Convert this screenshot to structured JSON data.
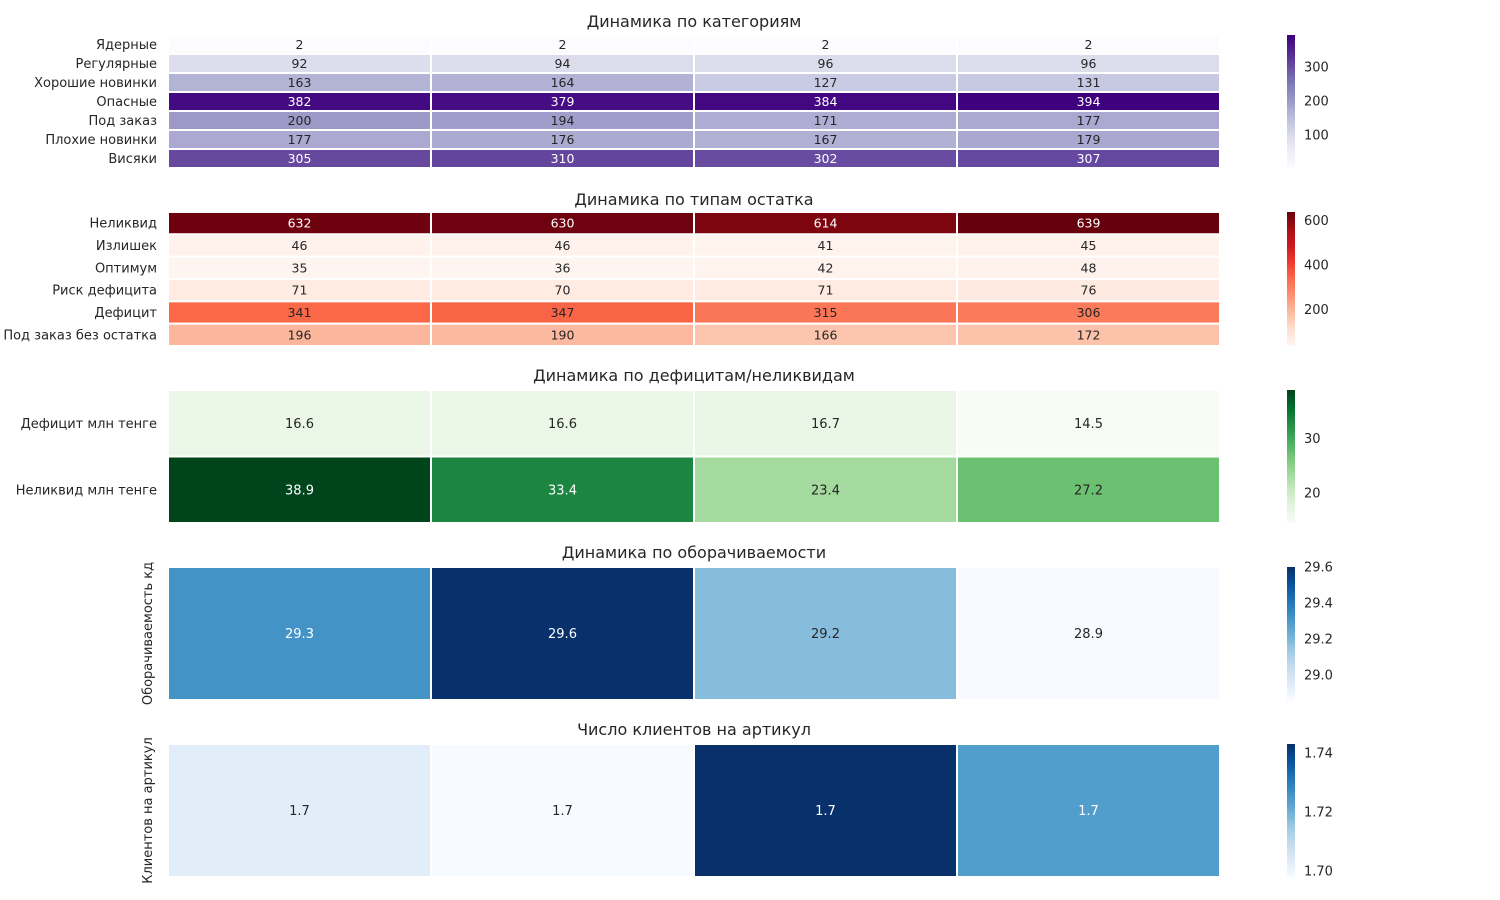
{
  "chart_data": [
    {
      "type": "heatmap",
      "title": "Динамика по категориям",
      "ylabel": "",
      "cmap": "Purples",
      "rows": [
        "Ядерные",
        "Регулярные",
        "Хорошие новинки",
        "Опасные",
        "Под заказ",
        "Плохие новинки",
        "Висяки"
      ],
      "cells": [
        [
          "2",
          "2",
          "2",
          "2"
        ],
        [
          "92",
          "94",
          "96",
          "96"
        ],
        [
          "163",
          "164",
          "127",
          "131"
        ],
        [
          "382",
          "379",
          "384",
          "394"
        ],
        [
          "200",
          "194",
          "171",
          "177"
        ],
        [
          "177",
          "176",
          "167",
          "179"
        ],
        [
          "305",
          "310",
          "302",
          "307"
        ]
      ],
      "vmin": 2,
      "vmax": 394,
      "colorbar_ticks": [
        "100",
        "200",
        "300"
      ],
      "colorbar_tick_values": [
        100,
        200,
        300
      ]
    },
    {
      "type": "heatmap",
      "title": "Динамика по типам остатка",
      "ylabel": "",
      "cmap": "Reds",
      "rows": [
        "Неликвид",
        "Излишек",
        "Оптимум",
        "Риск дефицита",
        "Дефицит",
        "Под заказ без остатка"
      ],
      "cells": [
        [
          "632",
          "630",
          "614",
          "639"
        ],
        [
          "46",
          "46",
          "41",
          "45"
        ],
        [
          "35",
          "36",
          "42",
          "48"
        ],
        [
          "71",
          "70",
          "71",
          "76"
        ],
        [
          "341",
          "347",
          "315",
          "306"
        ],
        [
          "196",
          "190",
          "166",
          "172"
        ]
      ],
      "vmin": 35,
      "vmax": 639,
      "colorbar_ticks": [
        "200",
        "400",
        "600"
      ],
      "colorbar_tick_values": [
        200,
        400,
        600
      ]
    },
    {
      "type": "heatmap",
      "title": "Динамика по дефицитам/неликвидам",
      "ylabel": "",
      "cmap": "Greens",
      "rows": [
        "Дефицит млн тенге",
        "Неликвид млн тенге"
      ],
      "cells": [
        [
          "16.6",
          "16.6",
          "16.7",
          "14.5"
        ],
        [
          "38.9",
          "33.4",
          "23.4",
          "27.2"
        ]
      ],
      "vmin": 14.5,
      "vmax": 38.9,
      "colorbar_ticks": [
        "20",
        "30"
      ],
      "colorbar_tick_values": [
        20,
        30
      ]
    },
    {
      "type": "heatmap",
      "title": "Динамика по оборачиваемости",
      "ylabel": "Оборачиваемость кд",
      "cmap": "Blues",
      "rows": [
        ""
      ],
      "cells": [
        [
          "29.3",
          "29.6",
          "29.2",
          "28.9"
        ]
      ],
      "values": [
        [
          29.32,
          29.6,
          29.18,
          28.86
        ]
      ],
      "vmin": 28.86,
      "vmax": 29.6,
      "colorbar_ticks": [
        "29.0",
        "29.2",
        "29.4",
        "29.6"
      ],
      "colorbar_tick_values": [
        29.0,
        29.2,
        29.4,
        29.6
      ]
    },
    {
      "type": "heatmap",
      "title": "Число клиентов на артикул",
      "ylabel": "Клиентов на артикул",
      "cmap": "Blues",
      "rows": [
        ""
      ],
      "cells": [
        [
          "1.7",
          "1.7",
          "1.7",
          "1.7"
        ]
      ],
      "values": [
        [
          1.703,
          1.698,
          1.743,
          1.724
        ]
      ],
      "vmin": 1.698,
      "vmax": 1.743,
      "colorbar_ticks": [
        "1.70",
        "1.72",
        "1.74"
      ],
      "colorbar_tick_values": [
        1.7,
        1.72,
        1.74
      ]
    }
  ],
  "colormaps": {
    "Purples": [
      "#fcfbfd",
      "#efedf5",
      "#dadaeb",
      "#bcbddc",
      "#9e9ac8",
      "#807dba",
      "#6a51a3",
      "#54278f",
      "#3f007d"
    ],
    "Reds": [
      "#fff5f0",
      "#fee0d2",
      "#fcbba1",
      "#fc9272",
      "#fb6a4a",
      "#ef3b2c",
      "#cb181d",
      "#a50f15",
      "#67000d"
    ],
    "Greens": [
      "#f7fcf5",
      "#e5f5e0",
      "#c7e9c0",
      "#a1d99b",
      "#74c476",
      "#41ab5d",
      "#238b45",
      "#006d2c",
      "#00441b"
    ],
    "Blues": [
      "#f7fbff",
      "#deebf7",
      "#c6dbef",
      "#9ecae1",
      "#6baed6",
      "#4292c6",
      "#2171b5",
      "#08519c",
      "#08306b"
    ]
  }
}
